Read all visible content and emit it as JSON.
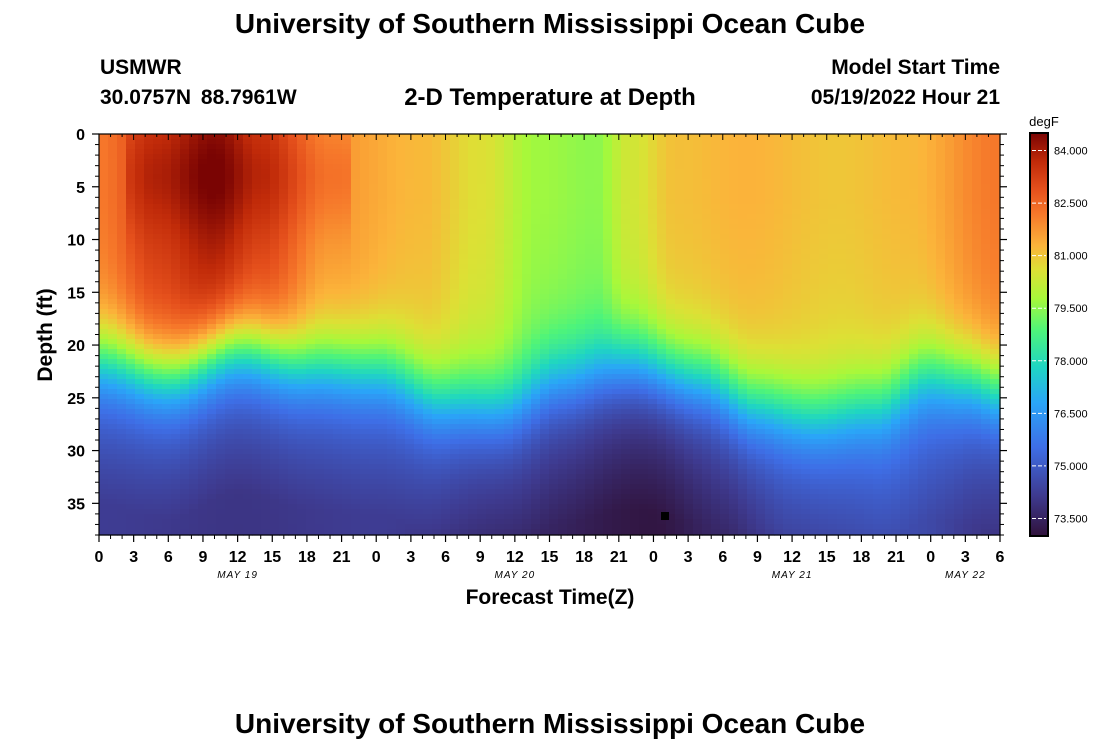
{
  "header": {
    "title": "University of Southern Mississippi Ocean Cube",
    "station": "USMWR",
    "coords": "30.0757N 88.7961W",
    "subtitle": "2-D Temperature at Depth",
    "start_label": "Model Start Time",
    "start_value": "05/19/2022 Hour 21"
  },
  "footer": {
    "title": "University of Southern Mississippi Ocean Cube"
  },
  "chart_data": {
    "type": "heatmap",
    "title": "2-D Temperature at Depth",
    "xlabel": "Forecast Time(Z)",
    "ylabel": "Depth (ft)",
    "x_hours_since_may19_00": [
      0,
      78
    ],
    "x_ticks": [
      "0",
      "3",
      "6",
      "9",
      "12",
      "15",
      "18",
      "21",
      "0",
      "3",
      "6",
      "9",
      "12",
      "15",
      "18",
      "21",
      "0",
      "3",
      "6",
      "9",
      "12",
      "15",
      "18",
      "21",
      "0",
      "3",
      "6"
    ],
    "date_labels": [
      {
        "text": "MAY 19",
        "hour": 12
      },
      {
        "text": "MAY 20",
        "hour": 36
      },
      {
        "text": "MAY 21",
        "hour": 60
      },
      {
        "text": "MAY 22",
        "hour": 75
      }
    ],
    "ylim": [
      0,
      38
    ],
    "y_ticks": [
      "0",
      "5",
      "10",
      "15",
      "20",
      "25",
      "30",
      "35"
    ],
    "colorbar": {
      "unit": "degF",
      "range": [
        73.0,
        84.5
      ],
      "ticks": [
        "84.000",
        "82.500",
        "81.000",
        "79.500",
        "78.000",
        "76.500",
        "75.000",
        "73.500"
      ]
    },
    "thermocline_depth_by_hour": [
      [
        0,
        21
      ],
      [
        6,
        22.5
      ],
      [
        12,
        20
      ],
      [
        18,
        21.5
      ],
      [
        24,
        22
      ],
      [
        30,
        25
      ],
      [
        35,
        25.5
      ],
      [
        40,
        23
      ],
      [
        46,
        21.5
      ],
      [
        52,
        23
      ],
      [
        57,
        25.5
      ],
      [
        62,
        26.5
      ],
      [
        67,
        25.5
      ],
      [
        72,
        22.5
      ],
      [
        75,
        23
      ],
      [
        78,
        24
      ]
    ],
    "surface_temp_by_hour": [
      [
        0,
        82.2
      ],
      [
        5,
        83.3
      ],
      [
        10,
        84.0
      ],
      [
        14,
        83.2
      ],
      [
        20,
        81.7
      ],
      [
        28,
        81.2
      ],
      [
        33,
        80.6
      ],
      [
        38,
        79.7
      ],
      [
        43,
        79.5
      ],
      [
        46,
        80.4
      ],
      [
        50,
        81.1
      ],
      [
        56,
        81.3
      ],
      [
        64,
        81.0
      ],
      [
        70,
        81.2
      ],
      [
        78,
        82.2
      ]
    ],
    "bottom_temp_by_hour": [
      [
        0,
        74.2
      ],
      [
        12,
        74.0
      ],
      [
        24,
        74.2
      ],
      [
        36,
        73.6
      ],
      [
        48,
        73.1
      ],
      [
        54,
        73.6
      ],
      [
        60,
        74.2
      ],
      [
        70,
        74.6
      ],
      [
        78,
        74.0
      ]
    ],
    "marker": {
      "hour": 49,
      "depth": 36.2
    }
  }
}
